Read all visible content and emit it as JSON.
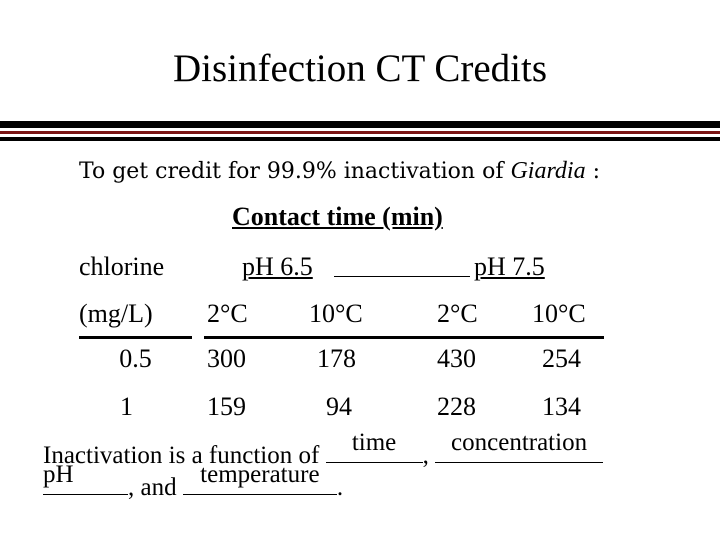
{
  "title": "Disinfection CT Credits",
  "intro": {
    "prefix": "To get credit for 99.9%  inactivation of ",
    "organism": "Giardia",
    "suffix": " :"
  },
  "table": {
    "header": "Contact time (min)",
    "row_label_top": "chlorine",
    "row_label_bottom": "(mg/L)",
    "ph_groups": [
      "pH 6.5",
      "pH 7.5"
    ],
    "temperatures": [
      "2°C",
      "10°C",
      "2°C",
      "10°C"
    ],
    "rows": [
      {
        "chlorine": "0.5",
        "values": [
          "300",
          "178",
          "430",
          "254"
        ]
      },
      {
        "chlorine": "1",
        "values": [
          "159",
          "94",
          "228",
          "134"
        ]
      }
    ]
  },
  "sentence": {
    "prefix": "Inactivation is a function of ",
    "sep1": ", ",
    "sep2": ", and ",
    "end": ".",
    "answers": [
      "time",
      "concentration",
      "pH",
      "temperature"
    ]
  }
}
